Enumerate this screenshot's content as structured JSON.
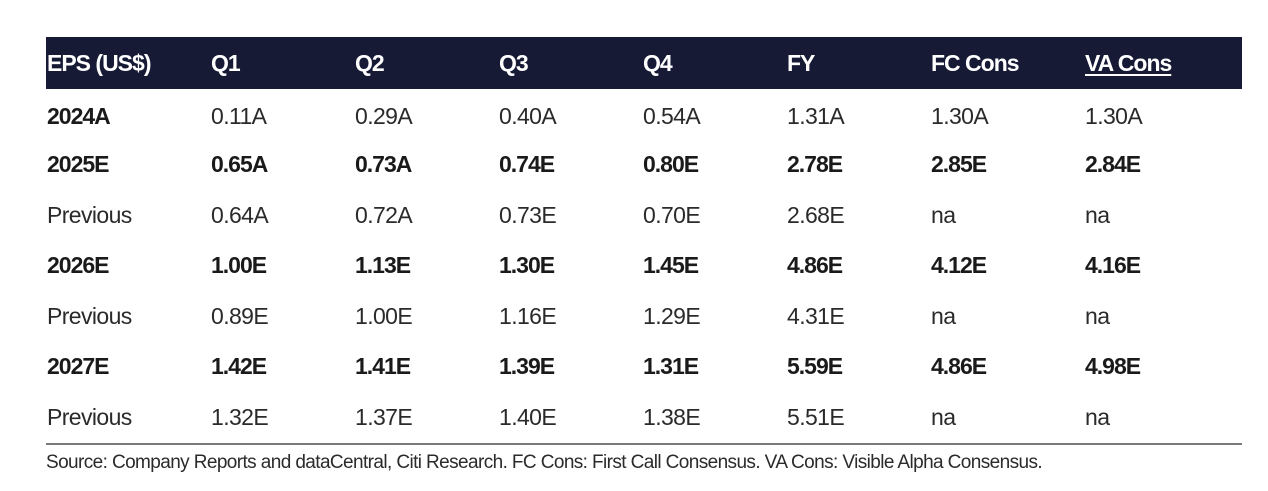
{
  "table": {
    "headers": [
      "EPS (US$)",
      "Q1",
      "Q2",
      "Q3",
      "Q4",
      "FY",
      "FC Cons",
      "VA Cons"
    ],
    "rows": [
      {
        "label": "2024A",
        "bold": true,
        "values": [
          "0.11A",
          "0.29A",
          "0.40A",
          "0.54A",
          "1.31A",
          "1.30A",
          "1.30A"
        ],
        "values_bold": false
      },
      {
        "label": "2025E",
        "bold": true,
        "values": [
          "0.65A",
          "0.73A",
          "0.74E",
          "0.80E",
          "2.78E",
          "2.85E",
          "2.84E"
        ],
        "values_bold": true
      },
      {
        "label": "Previous",
        "bold": false,
        "values": [
          "0.64A",
          "0.72A",
          "0.73E",
          "0.70E",
          "2.68E",
          "na",
          "na"
        ],
        "values_bold": false
      },
      {
        "label": "2026E",
        "bold": true,
        "values": [
          "1.00E",
          "1.13E",
          "1.30E",
          "1.45E",
          "4.86E",
          "4.12E",
          "4.16E"
        ],
        "values_bold": true
      },
      {
        "label": "Previous",
        "bold": false,
        "values": [
          "0.89E",
          "1.00E",
          "1.16E",
          "1.29E",
          "4.31E",
          "na",
          "na"
        ],
        "values_bold": false
      },
      {
        "label": "2027E",
        "bold": true,
        "values": [
          "1.42E",
          "1.41E",
          "1.39E",
          "1.31E",
          "5.59E",
          "4.86E",
          "4.98E"
        ],
        "values_bold": true
      },
      {
        "label": "Previous",
        "bold": false,
        "values": [
          "1.32E",
          "1.37E",
          "1.40E",
          "1.38E",
          "5.51E",
          "na",
          "na"
        ],
        "values_bold": false
      }
    ]
  },
  "source_note": "Source: Company Reports and dataCentral, Citi Research.   FC Cons: First Call Consensus. VA Cons: Visible Alpha Consensus.",
  "colors": {
    "header_background": "#161a35",
    "header_text": "#ffffff",
    "body_text": "#2a2a2a",
    "rule": "#7a7a7a"
  }
}
